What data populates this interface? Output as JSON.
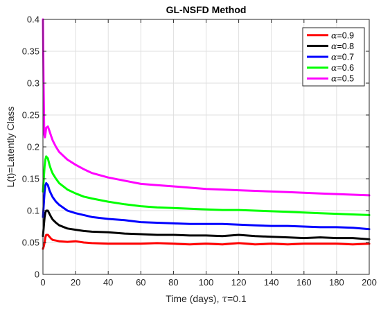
{
  "chart_data": {
    "type": "line",
    "title": "GL-NSFD Method",
    "xlabel_prefix": "Time (days), ",
    "xlabel_symbol": "τ",
    "xlabel_suffix": "=0.1",
    "ylabel": "L(t)=Latently Class",
    "xlim": [
      0,
      200
    ],
    "ylim": [
      0,
      0.4
    ],
    "xticks": [
      0,
      20,
      40,
      60,
      80,
      100,
      120,
      140,
      160,
      180,
      200
    ],
    "yticks": [
      0,
      0.05,
      0.1,
      0.15,
      0.2,
      0.25,
      0.3,
      0.35,
      0.4
    ],
    "xtick_labels": [
      "0",
      "20",
      "40",
      "60",
      "80",
      "100",
      "120",
      "140",
      "160",
      "180",
      "200"
    ],
    "ytick_labels": [
      "0",
      "0.05",
      "0.1",
      "0.15",
      "0.2",
      "0.25",
      "0.3",
      "0.35",
      "0.4"
    ],
    "grid": true,
    "legend_position": "top-right",
    "series": [
      {
        "name_symbol": "α",
        "name_suffix": "=0.9",
        "color": "#ff0000",
        "x": [
          0,
          0.5,
          1,
          1.5,
          2,
          3,
          4,
          5,
          6,
          8,
          10,
          15,
          20,
          25,
          30,
          40,
          50,
          60,
          70,
          80,
          90,
          100,
          110,
          120,
          130,
          140,
          150,
          160,
          170,
          180,
          190,
          200
        ],
        "y": [
          0.04,
          0.044,
          0.05,
          0.058,
          0.062,
          0.062,
          0.059,
          0.056,
          0.054,
          0.053,
          0.052,
          0.051,
          0.052,
          0.05,
          0.049,
          0.048,
          0.048,
          0.048,
          0.049,
          0.048,
          0.047,
          0.048,
          0.047,
          0.049,
          0.047,
          0.048,
          0.047,
          0.048,
          0.048,
          0.048,
          0.047,
          0.048
        ]
      },
      {
        "name_symbol": "α",
        "name_suffix": "=0.8",
        "color": "#000000",
        "x": [
          0,
          0.5,
          1,
          1.5,
          2,
          3,
          4,
          5,
          6,
          8,
          10,
          15,
          20,
          25,
          30,
          40,
          50,
          60,
          70,
          80,
          90,
          100,
          110,
          120,
          130,
          140,
          150,
          160,
          170,
          180,
          190,
          200
        ],
        "y": [
          0.06,
          0.075,
          0.09,
          0.097,
          0.1,
          0.1,
          0.095,
          0.09,
          0.086,
          0.081,
          0.077,
          0.072,
          0.07,
          0.068,
          0.067,
          0.066,
          0.064,
          0.063,
          0.062,
          0.062,
          0.061,
          0.061,
          0.06,
          0.062,
          0.06,
          0.059,
          0.058,
          0.057,
          0.058,
          0.057,
          0.057,
          0.055
        ]
      },
      {
        "name_symbol": "α",
        "name_suffix": "=0.7",
        "color": "#0000ff",
        "x": [
          0,
          0.5,
          1,
          1.5,
          2,
          3,
          4,
          5,
          6,
          8,
          10,
          15,
          20,
          25,
          30,
          40,
          50,
          60,
          70,
          80,
          90,
          100,
          110,
          120,
          130,
          140,
          150,
          160,
          170,
          180,
          190,
          200
        ],
        "y": [
          0.09,
          0.11,
          0.13,
          0.14,
          0.143,
          0.14,
          0.132,
          0.126,
          0.121,
          0.114,
          0.109,
          0.1,
          0.096,
          0.093,
          0.09,
          0.087,
          0.085,
          0.082,
          0.081,
          0.08,
          0.079,
          0.079,
          0.079,
          0.078,
          0.077,
          0.076,
          0.076,
          0.075,
          0.074,
          0.074,
          0.073,
          0.071
        ]
      },
      {
        "name_symbol": "α",
        "name_suffix": "=0.6",
        "color": "#00ff00",
        "x": [
          0,
          0.5,
          1,
          1.5,
          2,
          3,
          4,
          5,
          6,
          8,
          10,
          15,
          20,
          25,
          30,
          40,
          50,
          60,
          70,
          80,
          90,
          100,
          110,
          120,
          130,
          140,
          150,
          160,
          170,
          180,
          190,
          200
        ],
        "y": [
          0.13,
          0.15,
          0.17,
          0.18,
          0.185,
          0.182,
          0.172,
          0.164,
          0.158,
          0.15,
          0.143,
          0.133,
          0.127,
          0.122,
          0.119,
          0.114,
          0.11,
          0.107,
          0.105,
          0.104,
          0.103,
          0.102,
          0.101,
          0.101,
          0.1,
          0.099,
          0.098,
          0.097,
          0.096,
          0.095,
          0.094,
          0.093
        ]
      },
      {
        "name_symbol": "α",
        "name_suffix": "=0.5",
        "color": "#ff00ff",
        "x": [
          0,
          0.4,
          0.8,
          1.2,
          1.6,
          2,
          3,
          4,
          5,
          6,
          8,
          10,
          15,
          20,
          25,
          30,
          40,
          50,
          60,
          70,
          80,
          90,
          100,
          110,
          120,
          130,
          140,
          150,
          160,
          170,
          180,
          190,
          200
        ],
        "y": [
          0.4,
          0.3,
          0.22,
          0.215,
          0.222,
          0.23,
          0.232,
          0.225,
          0.217,
          0.21,
          0.2,
          0.192,
          0.18,
          0.172,
          0.165,
          0.159,
          0.152,
          0.147,
          0.142,
          0.14,
          0.138,
          0.136,
          0.134,
          0.133,
          0.132,
          0.131,
          0.13,
          0.129,
          0.128,
          0.127,
          0.126,
          0.125,
          0.124
        ]
      }
    ]
  }
}
